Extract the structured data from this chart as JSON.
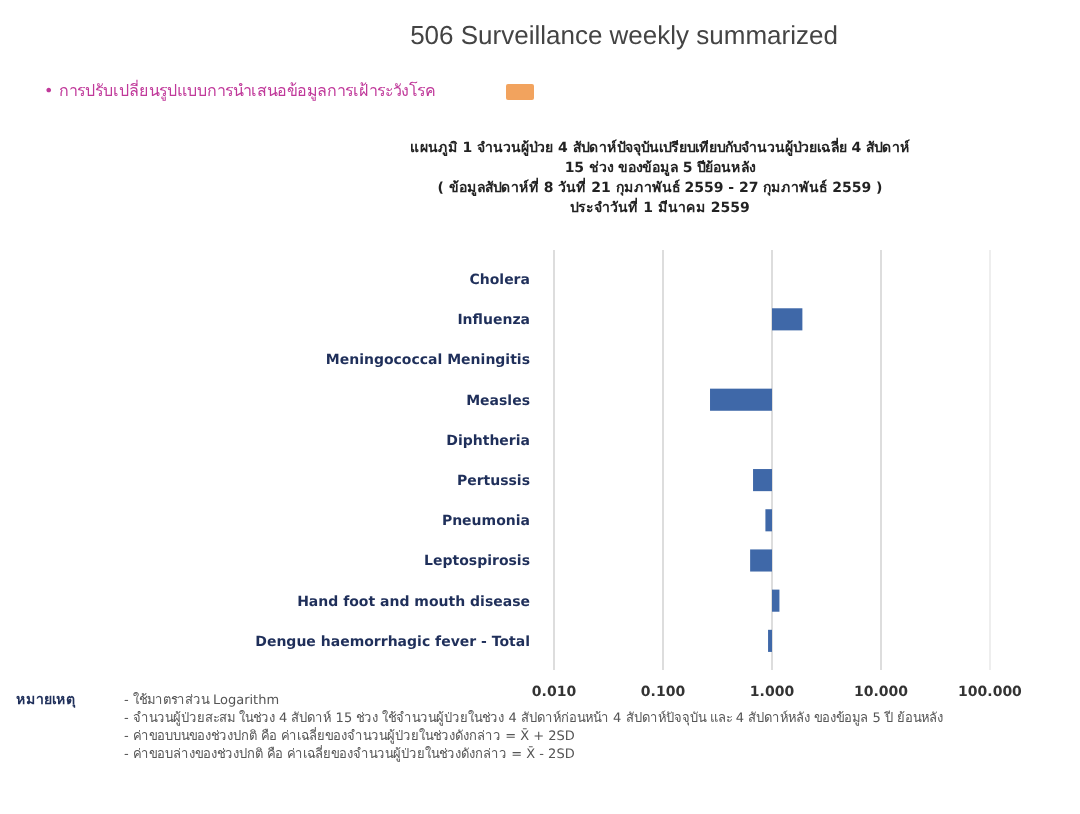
{
  "chart_data": {
    "type": "bar",
    "orientation": "horizontal",
    "title": "506 Surveillance weekly summarized",
    "subtitle": "• การปรับเปลี่ยนรูปแบบการนำเสนอข้อมูลการเฝ้าระวังโรค",
    "categories": [
      "Cholera",
      "Influenza",
      "Meningococcal Meningitis",
      "Measles",
      "Diphtheria",
      "Pertussis",
      "Pneumonia",
      "Leptospirosis",
      "Hand foot and mouth disease",
      "Dengue haemorrhagic fever - Total"
    ],
    "values": [
      null,
      0.9,
      null,
      0.73,
      null,
      0.33,
      0.13,
      0.37,
      0.17,
      0.08
    ],
    "base": [
      null,
      1,
      null,
      0.27,
      null,
      0.67,
      0.87,
      0.63,
      1,
      0.92
    ],
    "color": "#3f68a8",
    "log": "x",
    "xlim": [
      0.01,
      100
    ],
    "xticks": [
      {
        "value": 0.01,
        "label": "0.010"
      },
      {
        "value": 0.1,
        "label": "0.100"
      },
      {
        "value": 1,
        "label": "1.000"
      },
      {
        "value": 10,
        "label": "10.000"
      },
      {
        "value": 100,
        "label": "100.000"
      }
    ],
    "grid": "x",
    "annotations": [
      "แผนภูมิ 1 จำนวนผู้ป่วย 4 สัปดาห์ปัจจุบันเปรียบเทียบกับจำนวนผู้ป่วยเฉลี่ย 4 สัปดาห์",
      "15 ช่วง ของข้อมูล 5 ปีย้อนหลัง",
      "( ข้อมูลสัปดาห์ที่ 8   วันที่  21  กุมภาพันธ์  2559  -  27  กุมภาพันธ์  2559 )",
      "ประจำวันที่  1  มีนาคม  2559",
      "หมายเหตุ",
      "- ใช้มาตราส่วน Logarithm",
      "- จำนวนผู้ป่วยสะสม ในช่วง 4 สัปดาห์ 15 ช่วง ใช้จำนวนผู้ป่วยในช่วง 4 สัปดาห์ก่อนหน้า 4 สัปดาห์ปัจจุบัน และ 4 สัปดาห์หลัง ของข้อมูล 5 ปี ย้อนหลัง",
      "- ค่าขอบบนของช่วงปกติ คือ ค่าเฉลี่ยของจำนวนผู้ป่วยในช่วงดังกล่าว = X̄ + 2SD",
      "- ค่าขอบล่างของช่วงปกติ คือ ค่าเฉลี่ยของจำนวนผู้ป่วยในช่วงดังกล่าว = X̄ - 2SD"
    ]
  }
}
